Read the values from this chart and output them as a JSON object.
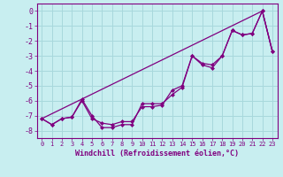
{
  "xlabel": "Windchill (Refroidissement éolien,°C)",
  "background_color": "#c8eef0",
  "grid_color": "#a8d8dc",
  "line_color": "#800080",
  "xlim": [
    -0.5,
    23.5
  ],
  "ylim": [
    -8.5,
    0.5
  ],
  "yticks": [
    0,
    -1,
    -2,
    -3,
    -4,
    -5,
    -6,
    -7,
    -8
  ],
  "xticks": [
    0,
    1,
    2,
    3,
    4,
    5,
    6,
    7,
    8,
    9,
    10,
    11,
    12,
    13,
    14,
    15,
    16,
    17,
    18,
    19,
    20,
    21,
    22,
    23
  ],
  "line1_x": [
    0,
    1,
    2,
    3,
    4,
    5,
    6,
    7,
    8,
    9,
    10,
    11,
    12,
    13,
    14,
    15,
    16,
    17,
    18,
    19,
    20,
    21,
    22,
    23
  ],
  "line1_y": [
    -7.2,
    -7.6,
    -7.2,
    -7.1,
    -6.0,
    -7.2,
    -7.5,
    -7.6,
    -7.4,
    -7.4,
    -6.4,
    -6.4,
    -6.3,
    -5.3,
    -5.0,
    -3.0,
    -3.5,
    -3.6,
    -3.0,
    -1.3,
    -1.6,
    -1.5,
    0.0,
    -2.7
  ],
  "line2_x": [
    0,
    1,
    2,
    3,
    4,
    5,
    6,
    7,
    8,
    9,
    10,
    11,
    12,
    13,
    14,
    15,
    16,
    17,
    18,
    19,
    20,
    21,
    22,
    23
  ],
  "line2_y": [
    -7.2,
    -7.6,
    -7.2,
    -7.1,
    -5.9,
    -7.0,
    -7.8,
    -7.8,
    -7.6,
    -7.6,
    -6.2,
    -6.2,
    -6.2,
    -5.6,
    -5.1,
    -3.0,
    -3.6,
    -3.8,
    -3.0,
    -1.3,
    -1.6,
    -1.5,
    0.0,
    -2.7
  ],
  "line3_x": [
    0,
    22,
    23
  ],
  "line3_y": [
    -7.2,
    0.0,
    -2.7
  ]
}
